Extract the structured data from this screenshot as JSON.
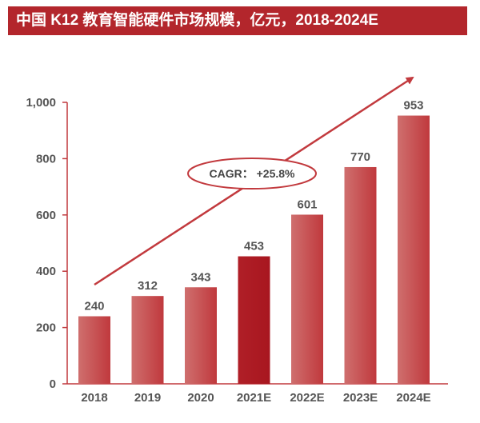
{
  "title": "中国 K12 教育智能硬件市场规模，亿元，2018-2024E",
  "annotation": {
    "cagr_label": "CAGR： +25.8%"
  },
  "colors": {
    "bar_dark": "#b01f27",
    "bar_light": "#d0706f",
    "axis": "#c0393d",
    "title_bg": "#b3262c"
  },
  "chart_data": {
    "type": "bar",
    "title": "中国 K12 教育智能硬件市场规模，亿元，2018-2024E",
    "categories": [
      "2018",
      "2019",
      "2020",
      "2021E",
      "2022E",
      "2023E",
      "2024E"
    ],
    "values": [
      240,
      312,
      343,
      453,
      601,
      770,
      953
    ],
    "ylim": [
      0,
      1000
    ],
    "yticks": [
      0,
      200,
      400,
      600,
      800,
      1000
    ],
    "ytick_labels": [
      "0",
      "200",
      "400",
      "600",
      "800",
      "1,000"
    ],
    "xlabel": "",
    "ylabel": "",
    "grid": false,
    "legend": "none"
  }
}
